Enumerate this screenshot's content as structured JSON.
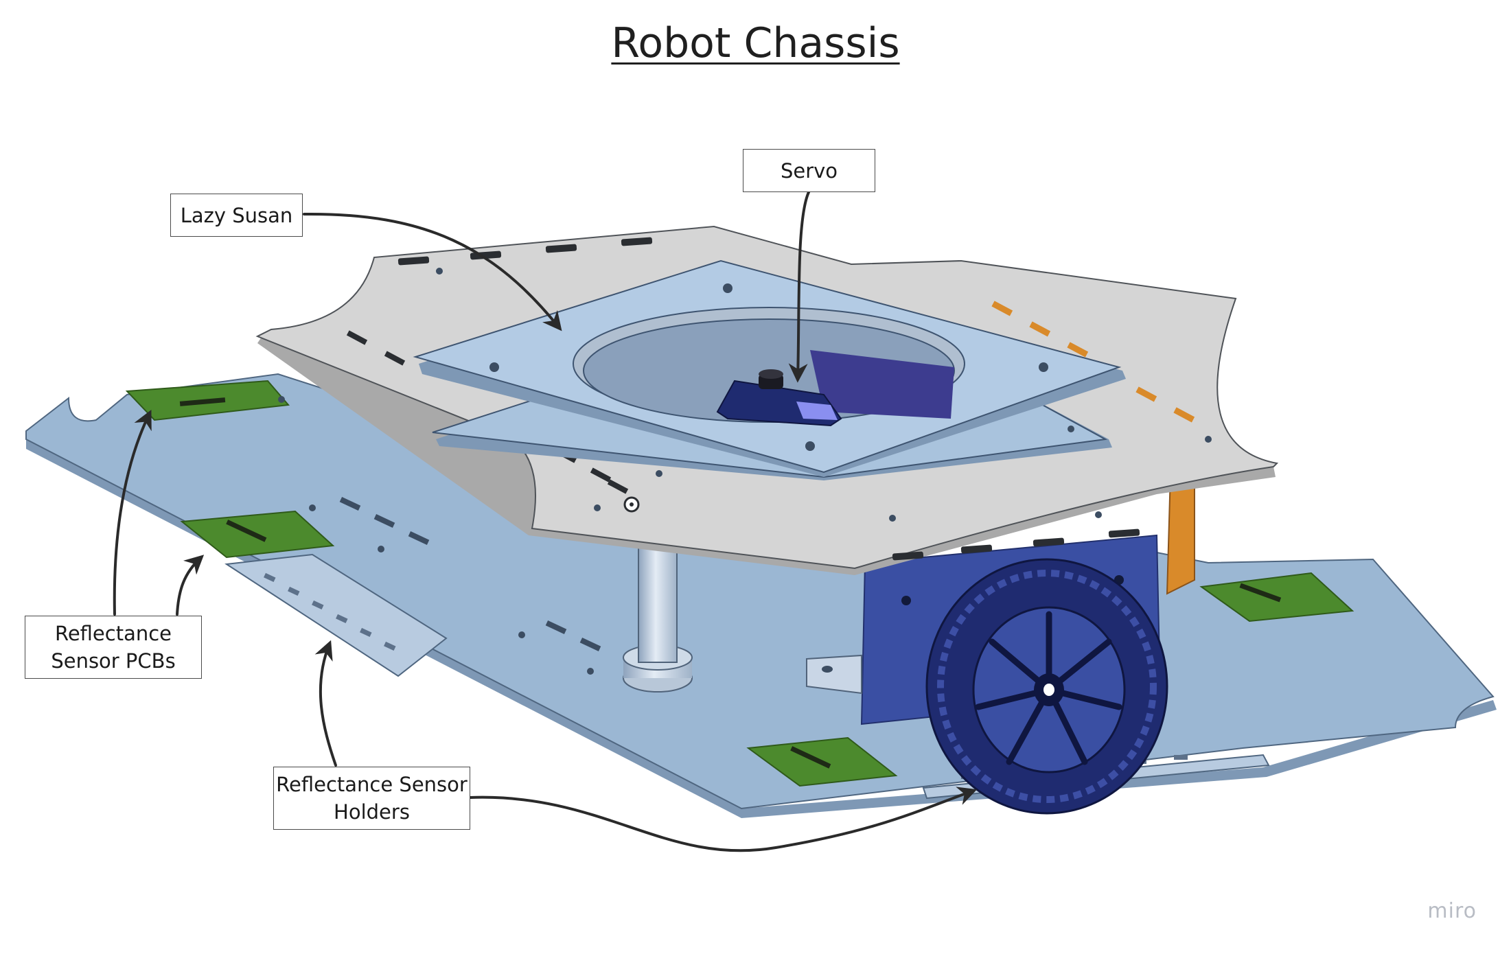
{
  "title": "Robot Chassis",
  "labels": {
    "servo": "Servo",
    "lazy_susan": "Lazy Susan",
    "reflectance_pcbs": "Reflectance\nSensor PCBs",
    "reflectance_holders": "Reflectance Sensor\nHolders"
  },
  "watermark": "miro",
  "colors": {
    "base_plate": "#9bb7d3",
    "top_plate": "#d5d5d5",
    "lazy_susan_plate": "#a9c3dd",
    "pcb": "#4c8a2d",
    "bracket": "#3a4fa3",
    "wheel": "#2b3a8f",
    "standoff": "#c9d6e6",
    "orange_bracket": "#d98a2a"
  }
}
